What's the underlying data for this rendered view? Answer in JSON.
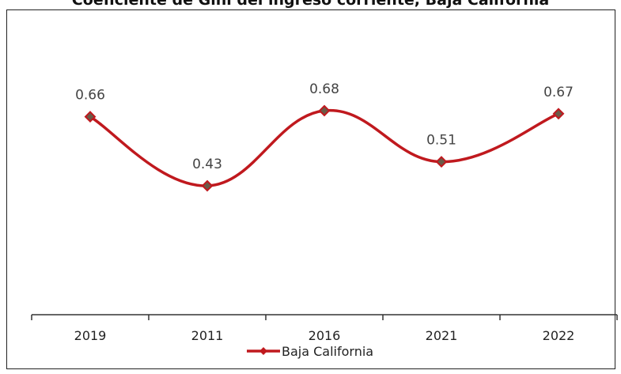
{
  "chart_data": {
    "type": "line",
    "title": "Coeficiente de Gini del ingreso corriente, Baja California",
    "categories": [
      "2019",
      "2011",
      "2016",
      "2021",
      "2022"
    ],
    "series": [
      {
        "name": "Baja California",
        "values": [
          0.66,
          0.43,
          0.68,
          0.51,
          0.67
        ]
      }
    ],
    "data_labels": [
      "0.66",
      "0.43",
      "0.68",
      "0.51",
      "0.67"
    ],
    "ylim": [
      0,
      1.0
    ],
    "grid": false,
    "legend_position": "bottom-center",
    "colors": {
      "line": "#c0191e",
      "marker": "#6b5a48",
      "axis": "#333333",
      "text": "#333333"
    }
  }
}
